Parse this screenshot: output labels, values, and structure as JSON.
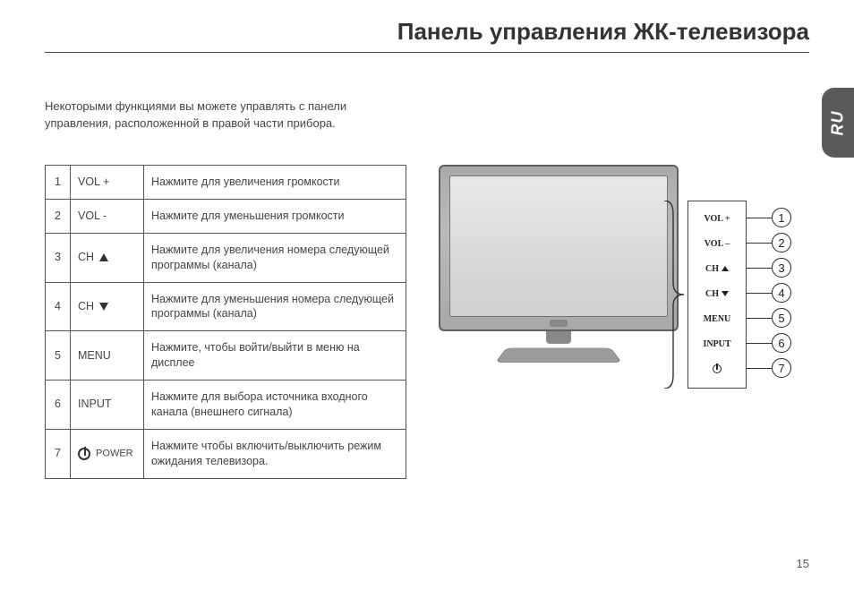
{
  "title": "Панель управления ЖК-телевизора",
  "subtitle": "Некоторыми функциями вы можете управлять с панели управления, расположенной в правой части прибора.",
  "lang_tab": "RU",
  "page_number": "15",
  "table": {
    "rows": [
      {
        "num": "1",
        "label": "VOL +",
        "desc": "Нажмите для увеличения громкости"
      },
      {
        "num": "2",
        "label": "VOL -",
        "desc": "Нажмите для уменьшения громкости"
      },
      {
        "num": "3",
        "label": "CH",
        "icon": "up",
        "desc": "Нажмите для увеличения номера следующей программы (канала)"
      },
      {
        "num": "4",
        "label": "CH",
        "icon": "down",
        "desc": "Нажмите для уменьшения номера следующей программы (канала)"
      },
      {
        "num": "5",
        "label": "MENU",
        "desc": "Нажмите, чтобы войти/выйти в меню на дисплее"
      },
      {
        "num": "6",
        "label": "INPUT",
        "desc": "Нажмите для выбора источника входного канала (внешнего сигнала)"
      },
      {
        "num": "7",
        "label": "POWER",
        "icon": "power",
        "desc": "Нажмите чтобы включить/выключить режим ожидания телевизора."
      }
    ]
  },
  "panel": {
    "items": [
      {
        "text": "VOL +",
        "callout": "1"
      },
      {
        "text": "VOL –",
        "callout": "2"
      },
      {
        "text": "CH",
        "icon": "up",
        "callout": "3"
      },
      {
        "text": "CH",
        "icon": "down",
        "callout": "4"
      },
      {
        "text": "MENU",
        "callout": "5"
      },
      {
        "text": "INPUT",
        "callout": "6"
      },
      {
        "icon": "power",
        "callout": "7"
      }
    ]
  },
  "colors": {
    "text": "#3a3a3a",
    "rule": "#444444",
    "tab_bg": "#5a5a5a"
  }
}
